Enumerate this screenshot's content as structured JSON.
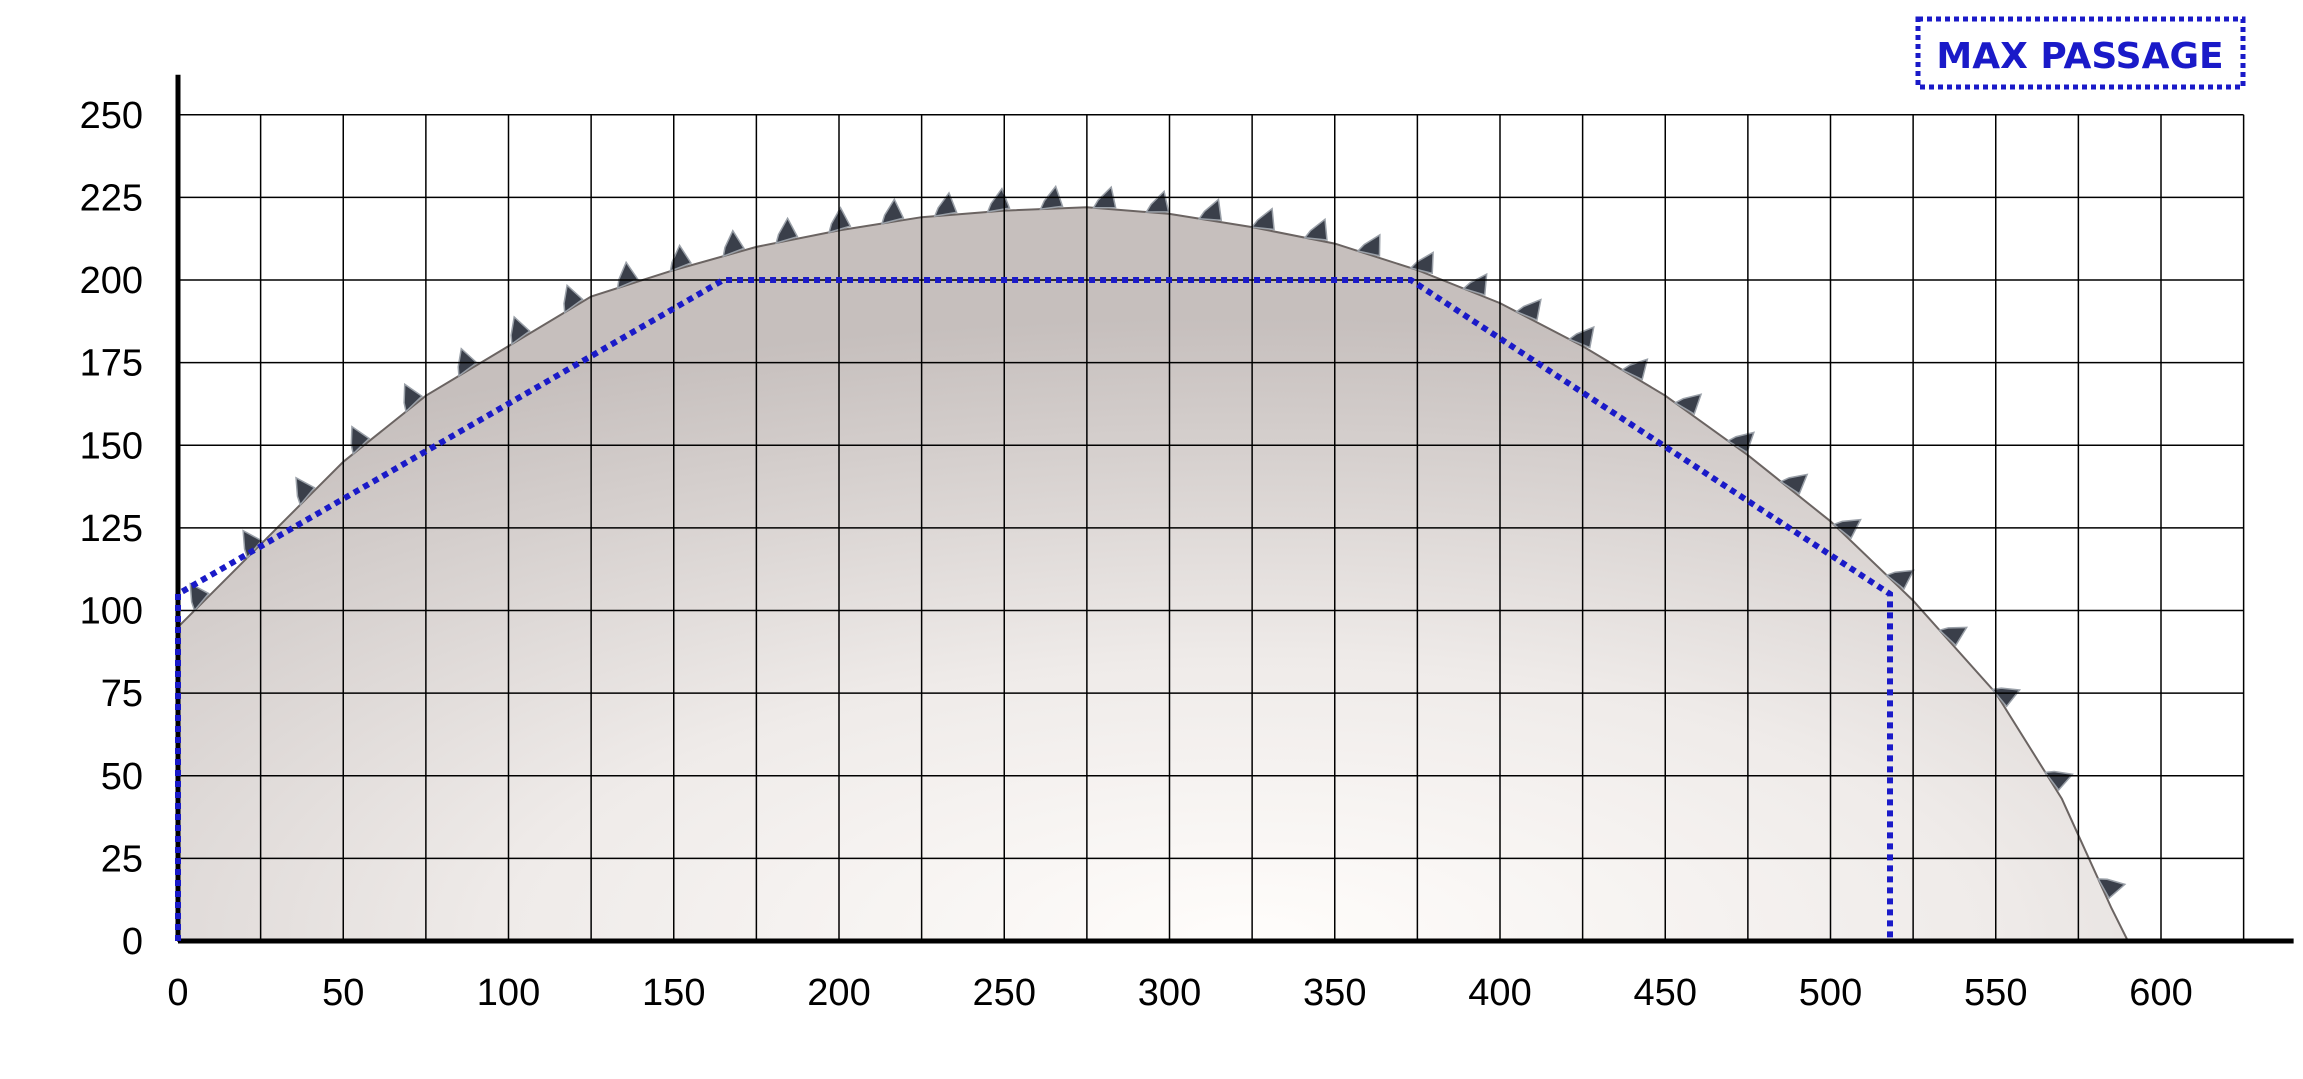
{
  "chart_data": {
    "type": "area",
    "title": "",
    "xlabel": "",
    "ylabel": "",
    "xlim": [
      0,
      625
    ],
    "ylim": [
      0,
      250
    ],
    "x_ticks": [
      0,
      50,
      100,
      150,
      200,
      250,
      300,
      350,
      400,
      450,
      500,
      550,
      600
    ],
    "y_ticks": [
      0,
      25,
      50,
      75,
      100,
      125,
      150,
      175,
      200,
      225,
      250
    ],
    "grid": true,
    "grid_step_x": 25,
    "grid_step_y": 25,
    "legend": {
      "label": "MAX PASSAGE",
      "placement": "top-right"
    },
    "series": [
      {
        "name": "MAX PASSAGE",
        "style": "dotted",
        "color": "#1a1ac8",
        "points": [
          [
            0,
            0
          ],
          [
            0,
            105
          ],
          [
            165,
            200
          ],
          [
            373,
            200
          ],
          [
            518,
            105
          ],
          [
            518,
            0
          ]
        ]
      }
    ],
    "background_shape": {
      "kind": "saw-blade-arc",
      "outline": [
        [
          0,
          95
        ],
        [
          25,
          120
        ],
        [
          50,
          145
        ],
        [
          75,
          165
        ],
        [
          100,
          180
        ],
        [
          125,
          195
        ],
        [
          150,
          203
        ],
        [
          175,
          210
        ],
        [
          200,
          215
        ],
        [
          225,
          219
        ],
        [
          250,
          221
        ],
        [
          275,
          222
        ],
        [
          300,
          220
        ],
        [
          325,
          216
        ],
        [
          350,
          211
        ],
        [
          375,
          203
        ],
        [
          400,
          193
        ],
        [
          425,
          180
        ],
        [
          450,
          165
        ],
        [
          475,
          147
        ],
        [
          500,
          127
        ],
        [
          525,
          103
        ],
        [
          550,
          75
        ],
        [
          570,
          43
        ],
        [
          585,
          10
        ],
        [
          590,
          0
        ]
      ]
    },
    "colors": {
      "grid": "#000000",
      "blade": "#cfc9c7",
      "dotted": "#1a1ac8"
    }
  }
}
